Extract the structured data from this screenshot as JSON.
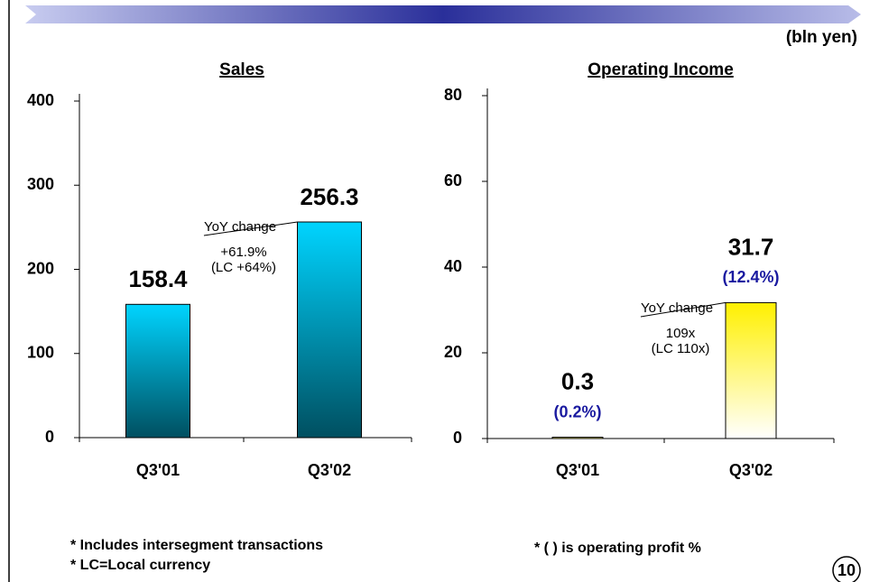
{
  "unit": "(bln yen)",
  "chart_data": [
    {
      "type": "bar",
      "title": "Sales",
      "categories": [
        "Q3'01",
        "Q3'02"
      ],
      "values": [
        158.4,
        256.3
      ],
      "ylim": [
        0,
        400
      ],
      "yticks": [
        0,
        100,
        200,
        300,
        400
      ],
      "gradient": [
        "#00d4ff",
        "#004f60"
      ],
      "annotation": {
        "title": "YoY change",
        "lines": [
          "+61.9%",
          "(LC +64%)"
        ]
      }
    },
    {
      "type": "bar",
      "title": "Operating Income",
      "categories": [
        "Q3'01",
        "Q3'02"
      ],
      "values": [
        0.3,
        31.7
      ],
      "value_notes": [
        "(0.2%)",
        "(12.4%)"
      ],
      "ylim": [
        0,
        80
      ],
      "yticks": [
        0,
        20,
        40,
        60,
        80
      ],
      "gradient": [
        "#fff000",
        "#ffffff"
      ],
      "annotation": {
        "title": "YoY change",
        "lines": [
          "109x",
          "(LC 110x)"
        ]
      }
    }
  ],
  "footnotes": [
    "* Includes intersegment transactions",
    "* LC=Local currency",
    "* (  ) is operating profit %"
  ],
  "page_number": "10"
}
